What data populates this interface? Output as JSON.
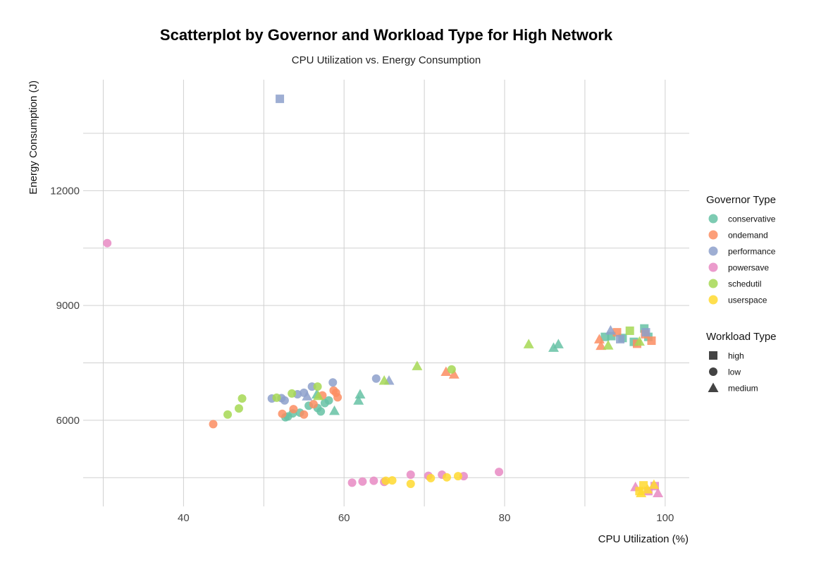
{
  "chart_data": {
    "type": "scatter",
    "title": "Scatterplot by Governor and Workload Type for High Network",
    "subtitle": "CPU Utilization vs. Energy Consumption",
    "xlabel": "CPU Utilization (%)",
    "ylabel": "Energy Consumption (J)",
    "xlim": [
      27.5,
      103
    ],
    "ylim": [
      3750,
      14900
    ],
    "x_ticks": [
      40,
      60,
      80,
      100
    ],
    "y_ticks": [
      6000,
      9000,
      12000
    ],
    "x_tick_labels": [
      "40",
      "60",
      "80",
      "100"
    ],
    "y_tick_labels": [
      "6000",
      "9000",
      "12000"
    ],
    "grid": true,
    "legend_position": "right",
    "legends": [
      {
        "title": "Governor Type",
        "entries": [
          {
            "label": "conservative",
            "color": "#66c2a5"
          },
          {
            "label": "ondemand",
            "color": "#fc8d62"
          },
          {
            "label": "performance",
            "color": "#8da0cb"
          },
          {
            "label": "powersave",
            "color": "#e78ac3"
          },
          {
            "label": "schedutil",
            "color": "#a6d854"
          },
          {
            "label": "userspace",
            "color": "#ffd92f"
          }
        ]
      },
      {
        "title": "Workload Type",
        "entries": [
          {
            "label": "high",
            "shape": "square"
          },
          {
            "label": "low",
            "shape": "circle"
          },
          {
            "label": "medium",
            "shape": "triangle"
          }
        ]
      }
    ],
    "series": [
      {
        "name": "conservative",
        "color": "#66c2a5",
        "points": [
          {
            "x": 52.7,
            "y": 6080,
            "w": "low"
          },
          {
            "x": 53.0,
            "y": 6100,
            "w": "low"
          },
          {
            "x": 53.6,
            "y": 6180,
            "w": "low"
          },
          {
            "x": 54.5,
            "y": 6200,
            "w": "low"
          },
          {
            "x": 55.6,
            "y": 6380,
            "w": "low"
          },
          {
            "x": 56.7,
            "y": 6320,
            "w": "low"
          },
          {
            "x": 57.1,
            "y": 6230,
            "w": "low"
          },
          {
            "x": 57.6,
            "y": 6450,
            "w": "low"
          },
          {
            "x": 58.1,
            "y": 6520,
            "w": "low"
          },
          {
            "x": 56.6,
            "y": 6680,
            "w": "medium"
          },
          {
            "x": 58.8,
            "y": 6250,
            "w": "medium"
          },
          {
            "x": 61.8,
            "y": 6520,
            "w": "medium"
          },
          {
            "x": 62.0,
            "y": 6680,
            "w": "medium"
          },
          {
            "x": 86.1,
            "y": 7900,
            "w": "medium"
          },
          {
            "x": 86.7,
            "y": 7990,
            "w": "medium"
          },
          {
            "x": 92.5,
            "y": 8180,
            "w": "high"
          },
          {
            "x": 93.3,
            "y": 8200,
            "w": "high"
          },
          {
            "x": 94.7,
            "y": 8150,
            "w": "high"
          },
          {
            "x": 96.1,
            "y": 8050,
            "w": "high"
          },
          {
            "x": 97.4,
            "y": 8400,
            "w": "high"
          },
          {
            "x": 97.9,
            "y": 8180,
            "w": "high"
          }
        ]
      },
      {
        "name": "ondemand",
        "color": "#fc8d62",
        "points": [
          {
            "x": 43.7,
            "y": 5900,
            "w": "low"
          },
          {
            "x": 52.3,
            "y": 6170,
            "w": "low"
          },
          {
            "x": 53.7,
            "y": 6290,
            "w": "low"
          },
          {
            "x": 55.0,
            "y": 6150,
            "w": "low"
          },
          {
            "x": 56.2,
            "y": 6420,
            "w": "low"
          },
          {
            "x": 57.3,
            "y": 6650,
            "w": "low"
          },
          {
            "x": 58.7,
            "y": 6780,
            "w": "low"
          },
          {
            "x": 59.0,
            "y": 6720,
            "w": "low"
          },
          {
            "x": 59.2,
            "y": 6600,
            "w": "low"
          },
          {
            "x": 72.7,
            "y": 7270,
            "w": "medium"
          },
          {
            "x": 73.7,
            "y": 7200,
            "w": "medium"
          },
          {
            "x": 91.8,
            "y": 8120,
            "w": "medium"
          },
          {
            "x": 92.0,
            "y": 7950,
            "w": "medium"
          },
          {
            "x": 94.0,
            "y": 8300,
            "w": "high"
          },
          {
            "x": 96.5,
            "y": 8000,
            "w": "high"
          },
          {
            "x": 97.5,
            "y": 8250,
            "w": "high"
          },
          {
            "x": 98.3,
            "y": 8080,
            "w": "high"
          }
        ]
      },
      {
        "name": "performance",
        "color": "#8da0cb",
        "points": [
          {
            "x": 52.0,
            "y": 14400,
            "w": "high"
          },
          {
            "x": 51.0,
            "y": 6570,
            "w": "low"
          },
          {
            "x": 52.2,
            "y": 6580,
            "w": "low"
          },
          {
            "x": 52.6,
            "y": 6520,
            "w": "low"
          },
          {
            "x": 54.2,
            "y": 6680,
            "w": "low"
          },
          {
            "x": 55.0,
            "y": 6720,
            "w": "low"
          },
          {
            "x": 56.0,
            "y": 6880,
            "w": "low"
          },
          {
            "x": 58.6,
            "y": 6990,
            "w": "low"
          },
          {
            "x": 64.0,
            "y": 7090,
            "w": "low"
          },
          {
            "x": 55.4,
            "y": 6630,
            "w": "medium"
          },
          {
            "x": 65.6,
            "y": 7040,
            "w": "medium"
          },
          {
            "x": 93.2,
            "y": 8350,
            "w": "medium"
          },
          {
            "x": 94.4,
            "y": 8120,
            "w": "high"
          },
          {
            "x": 97.6,
            "y": 8300,
            "w": "high"
          }
        ]
      },
      {
        "name": "powersave",
        "color": "#e78ac3",
        "points": [
          {
            "x": 30.5,
            "y": 10630,
            "w": "low"
          },
          {
            "x": 61.0,
            "y": 4370,
            "w": "low"
          },
          {
            "x": 62.3,
            "y": 4400,
            "w": "low"
          },
          {
            "x": 63.7,
            "y": 4420,
            "w": "low"
          },
          {
            "x": 65.0,
            "y": 4390,
            "w": "low"
          },
          {
            "x": 68.3,
            "y": 4580,
            "w": "low"
          },
          {
            "x": 70.5,
            "y": 4550,
            "w": "low"
          },
          {
            "x": 72.2,
            "y": 4580,
            "w": "low"
          },
          {
            "x": 74.9,
            "y": 4540,
            "w": "low"
          },
          {
            "x": 79.3,
            "y": 4650,
            "w": "low"
          },
          {
            "x": 96.3,
            "y": 4260,
            "w": "medium"
          },
          {
            "x": 98.7,
            "y": 4280,
            "w": "high"
          },
          {
            "x": 99.1,
            "y": 4100,
            "w": "medium"
          },
          {
            "x": 97.9,
            "y": 4150,
            "w": "high"
          }
        ]
      },
      {
        "name": "schedutil",
        "color": "#a6d854",
        "points": [
          {
            "x": 45.5,
            "y": 6150,
            "w": "low"
          },
          {
            "x": 46.9,
            "y": 6310,
            "w": "low"
          },
          {
            "x": 47.3,
            "y": 6570,
            "w": "low"
          },
          {
            "x": 51.6,
            "y": 6590,
            "w": "low"
          },
          {
            "x": 53.5,
            "y": 6700,
            "w": "low"
          },
          {
            "x": 56.7,
            "y": 6880,
            "w": "low"
          },
          {
            "x": 73.4,
            "y": 7330,
            "w": "low"
          },
          {
            "x": 56.8,
            "y": 6640,
            "w": "medium"
          },
          {
            "x": 65.0,
            "y": 7040,
            "w": "medium"
          },
          {
            "x": 69.1,
            "y": 7420,
            "w": "medium"
          },
          {
            "x": 83.0,
            "y": 7990,
            "w": "medium"
          },
          {
            "x": 92.9,
            "y": 7960,
            "w": "medium"
          },
          {
            "x": 95.6,
            "y": 8340,
            "w": "high"
          },
          {
            "x": 96.8,
            "y": 8060,
            "w": "medium"
          }
        ]
      },
      {
        "name": "userspace",
        "color": "#ffd92f",
        "points": [
          {
            "x": 65.2,
            "y": 4420,
            "w": "low"
          },
          {
            "x": 66.0,
            "y": 4430,
            "w": "low"
          },
          {
            "x": 68.3,
            "y": 4340,
            "w": "low"
          },
          {
            "x": 70.8,
            "y": 4490,
            "w": "low"
          },
          {
            "x": 72.8,
            "y": 4510,
            "w": "low"
          },
          {
            "x": 74.2,
            "y": 4540,
            "w": "low"
          },
          {
            "x": 96.8,
            "y": 4150,
            "w": "high"
          },
          {
            "x": 97.3,
            "y": 4300,
            "w": "high"
          },
          {
            "x": 97.8,
            "y": 4200,
            "w": "medium"
          },
          {
            "x": 98.6,
            "y": 4320,
            "w": "medium"
          },
          {
            "x": 97.0,
            "y": 4100,
            "w": "medium"
          }
        ]
      }
    ]
  }
}
